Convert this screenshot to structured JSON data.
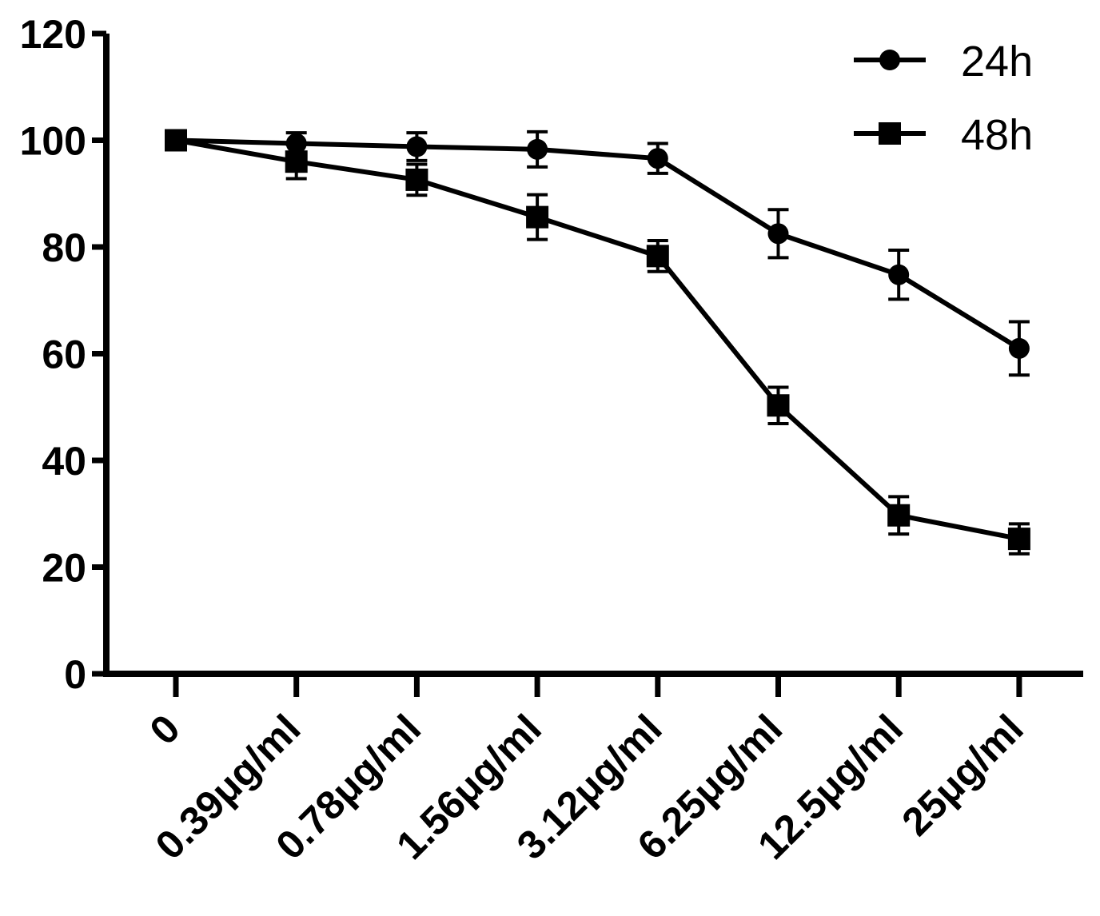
{
  "chart_data": {
    "type": "line",
    "title": "",
    "xlabel": "",
    "ylabel": "",
    "categories": [
      "0",
      "0.39μg/ml",
      "0.78μg/ml",
      "1.56μg/ml",
      "3.12μg/ml",
      "6.25μg/ml",
      "12.5μg/ml",
      "25μg/ml"
    ],
    "ylim": [
      0,
      120
    ],
    "yticks": [
      0,
      20,
      40,
      60,
      80,
      100,
      120
    ],
    "legend_position": "top-right",
    "series": [
      {
        "name": "24h",
        "marker": "circle",
        "values": [
          100,
          99.4,
          98.8,
          98.3,
          96.6,
          82.5,
          74.8,
          61.0
        ],
        "errors": [
          0,
          2.0,
          2.6,
          3.3,
          2.8,
          4.5,
          4.6,
          5.0
        ]
      },
      {
        "name": "48h",
        "marker": "square",
        "values": [
          100,
          96.0,
          92.6,
          85.6,
          78.3,
          50.3,
          29.7,
          25.3
        ],
        "errors": [
          0,
          3.2,
          2.9,
          4.2,
          2.9,
          3.4,
          3.5,
          2.8
        ]
      }
    ]
  }
}
